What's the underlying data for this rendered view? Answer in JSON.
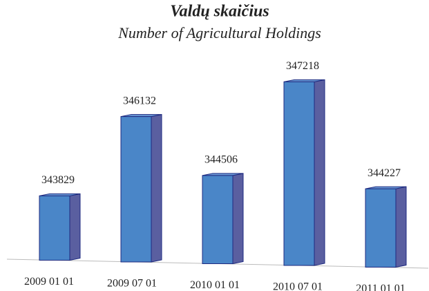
{
  "chart_data": {
    "type": "bar3d",
    "title": "Valdų skaičius",
    "subtitle": "Number of Agricultural Holdings",
    "categories": [
      "2009 01 01",
      "2009 07 01",
      "2010 01 01",
      "2010 07 01",
      "2011 01 01"
    ],
    "values": [
      343829,
      346132,
      344506,
      347218,
      344227
    ],
    "color": "#4a86c8",
    "ylim": [
      342000,
      347500
    ]
  }
}
